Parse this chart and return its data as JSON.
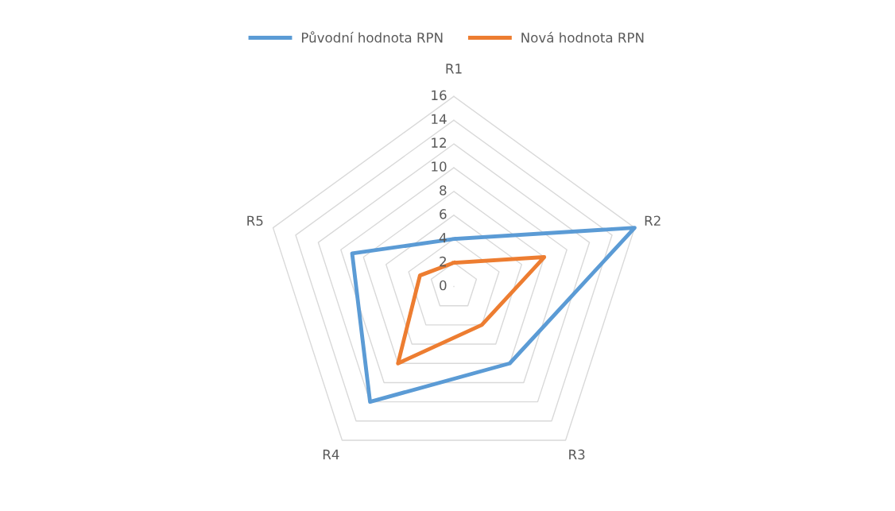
{
  "chart_data": {
    "type": "radar",
    "categories": [
      "R1",
      "R2",
      "R3",
      "R4",
      "R5"
    ],
    "series": [
      {
        "name": "Původní hodnota RPN",
        "color": "#5b9bd5",
        "values": [
          4,
          16,
          8,
          12,
          9
        ]
      },
      {
        "name": "Nová hodnota RPN",
        "color": "#ed7d31",
        "values": [
          2,
          8,
          4,
          8,
          3
        ]
      }
    ],
    "ylim": [
      0,
      16
    ],
    "yticks": [
      0,
      2,
      4,
      6,
      8,
      10,
      12,
      14,
      16
    ],
    "grid": true,
    "legend": "top",
    "marker": "none"
  }
}
